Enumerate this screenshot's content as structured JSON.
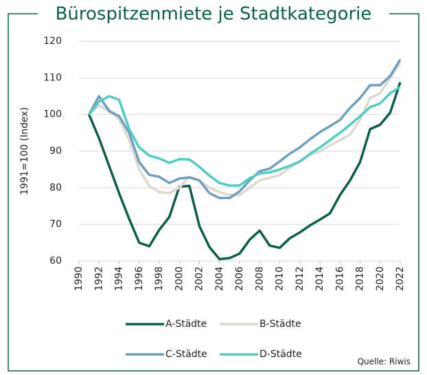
{
  "chart_data": {
    "type": "line",
    "title": "Bürospitzenmiete je Stadtkategorie",
    "y_label": "1991=100 (Index)",
    "source": "Quelle: Riwis",
    "x": [
      1991,
      1992,
      1993,
      1994,
      1995,
      1996,
      1997,
      1998,
      1999,
      2000,
      2001,
      2002,
      2003,
      2004,
      2005,
      2006,
      2007,
      2008,
      2009,
      2010,
      2011,
      2012,
      2013,
      2014,
      2015,
      2016,
      2017,
      2018,
      2019,
      2020,
      2021,
      2022
    ],
    "series": [
      {
        "name": "A-Städte",
        "color": "#0b5e4a",
        "values": [
          100,
          93.5,
          86,
          78.5,
          71.5,
          65,
          64,
          68.5,
          72,
          80.3,
          80.5,
          69.5,
          63.8,
          60.5,
          60.8,
          62,
          65.8,
          68.3,
          64.2,
          63.6,
          66.2,
          67.8,
          69.7,
          71.3,
          73,
          78,
          82,
          87,
          96,
          97.2,
          100.5,
          108.8
        ]
      },
      {
        "name": "B-Städte",
        "color": "#dcd9cf",
        "values": [
          100,
          102.5,
          100.8,
          98.8,
          93,
          85,
          80.5,
          78.8,
          78.5,
          80,
          83,
          82,
          80,
          78.8,
          78,
          78,
          80,
          82,
          82.7,
          83.5,
          85.5,
          87,
          89,
          90,
          91.5,
          93,
          94.5,
          98.5,
          104.5,
          105.8,
          110,
          114
        ]
      },
      {
        "name": "C-Städte",
        "color": "#6f9fc0",
        "values": [
          100,
          105,
          101,
          99.5,
          95,
          87,
          83.5,
          83,
          81.3,
          82.5,
          82.8,
          82,
          78.5,
          77.2,
          77.2,
          79,
          82,
          84.5,
          85.2,
          87.2,
          89.3,
          91,
          93.2,
          95.2,
          96.8,
          98.5,
          101.8,
          104.5,
          108,
          108,
          110.5,
          115
        ]
      },
      {
        "name": "D-Städte",
        "color": "#4ecdc0",
        "values": [
          100,
          103.5,
          105,
          104,
          96,
          91,
          88.8,
          88,
          86.8,
          87.8,
          87.7,
          85.7,
          83.3,
          81.3,
          80.6,
          80.6,
          82.6,
          83.9,
          84.2,
          85,
          86,
          87.2,
          89.2,
          91,
          93,
          95,
          97.2,
          99.5,
          102,
          103,
          105.8,
          107.5
        ]
      }
    ],
    "xlim": [
      1990,
      2022
    ],
    "xticks": [
      1990,
      1992,
      1994,
      1996,
      1998,
      2000,
      2002,
      2004,
      2006,
      2008,
      2010,
      2012,
      2014,
      2016,
      2018,
      2020,
      2022
    ],
    "ylim": [
      60,
      120
    ],
    "yticks": [
      60,
      70,
      80,
      90,
      100,
      110,
      120
    ],
    "grid": true,
    "frame_color": "#0b5e4a"
  }
}
